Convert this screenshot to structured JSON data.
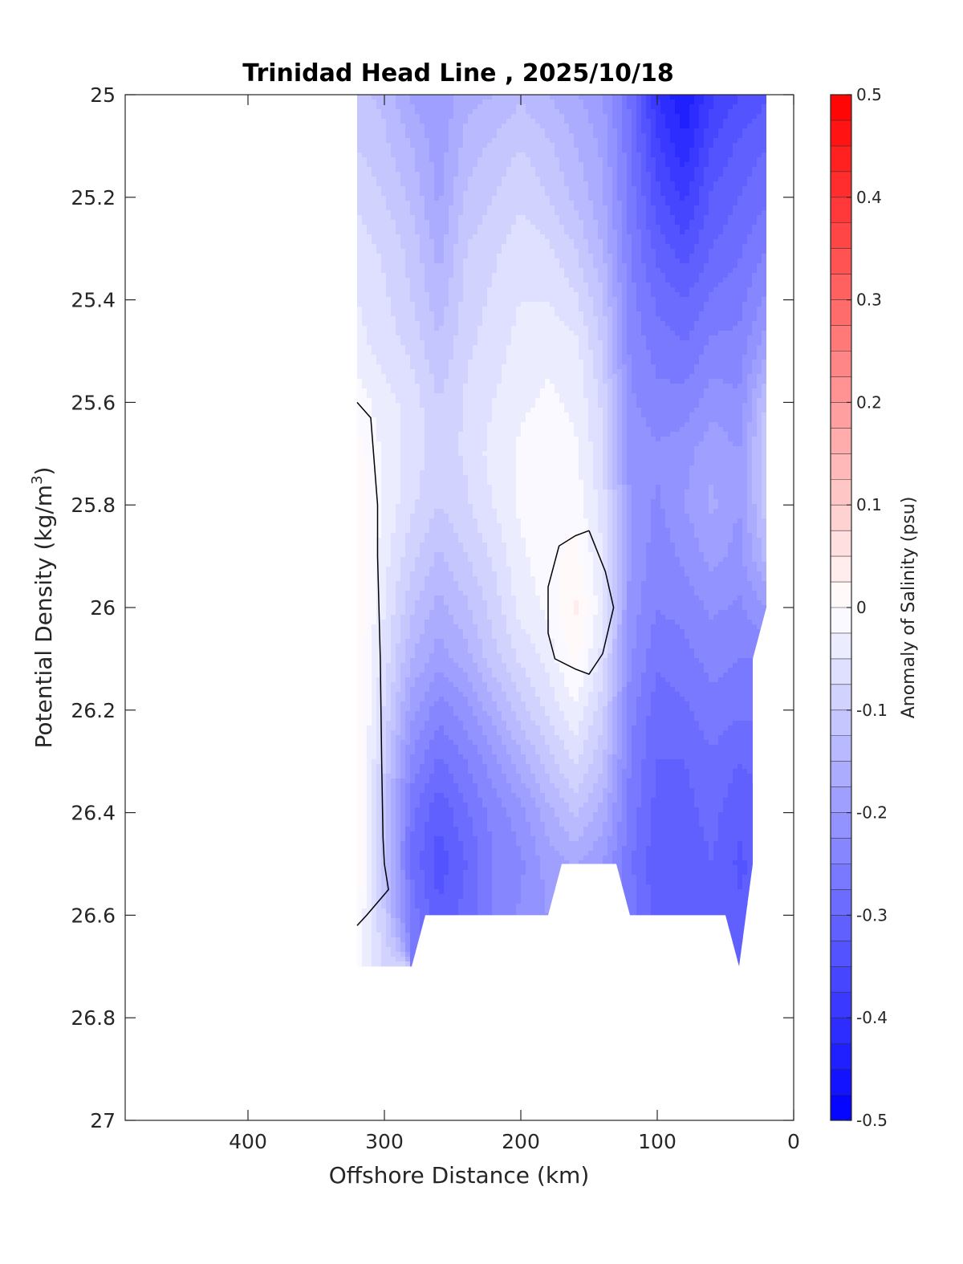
{
  "chart_data": {
    "type": "heatmap",
    "title": "Trinidad Head Line , 2025/10/18",
    "xlabel": "Offshore Distance (km)",
    "ylabel": "Potential Density (kg/m",
    "ylabel_superscript": "3",
    "ylabel_close": ")",
    "colorbar_label": "Anomaly of Salinity (psu)",
    "xlim": [
      490,
      0
    ],
    "x_direction": "reversed",
    "ylim": [
      25,
      27
    ],
    "y_direction": "reversed",
    "x_ticks": [
      400,
      300,
      200,
      100,
      0
    ],
    "y_ticks": [
      25,
      25.2,
      25.4,
      25.6,
      25.8,
      26,
      26.2,
      26.4,
      26.6,
      26.8,
      27
    ],
    "y_tick_labels": [
      "25",
      "25.2",
      "25.4",
      "25.6",
      "25.8",
      "26",
      "26.2",
      "26.4",
      "26.6",
      "26.8",
      "27"
    ],
    "colorbar_ticks": [
      0.5,
      0.4,
      0.3,
      0.2,
      0.1,
      0,
      -0.1,
      -0.2,
      -0.3,
      -0.4,
      -0.5
    ],
    "colorbar_tick_labels": [
      "0.5",
      "0.4",
      "0.3",
      "0.2",
      "0.1",
      "0",
      "-0.1",
      "-0.2",
      "-0.3",
      "-0.4",
      "-0.5"
    ],
    "color_range": [
      -0.5,
      0.5
    ],
    "color_levels": 40,
    "colormap": {
      "low": "#0000ff",
      "mid": "#ffffff",
      "high": "#ff0000"
    },
    "grid": false,
    "contours": [
      {
        "level": 0,
        "points": [
          [
            320,
            25.6
          ],
          [
            310,
            25.63
          ],
          [
            305,
            25.8
          ],
          [
            305,
            25.9
          ],
          [
            304,
            26.0
          ],
          [
            303,
            26.1
          ],
          [
            302,
            26.3
          ],
          [
            301,
            26.45
          ],
          [
            300,
            26.5
          ],
          [
            297,
            26.55
          ],
          [
            313,
            26.6
          ],
          [
            320,
            26.62
          ]
        ]
      },
      {
        "level": 0,
        "points": [
          [
            150,
            25.85
          ],
          [
            160,
            25.86
          ],
          [
            172,
            25.88
          ],
          [
            180,
            25.96
          ],
          [
            180,
            26.05
          ],
          [
            175,
            26.1
          ],
          [
            160,
            26.12
          ],
          [
            150,
            26.13
          ],
          [
            140,
            26.09
          ],
          [
            132,
            26.0
          ],
          [
            138,
            25.93
          ],
          [
            150,
            25.85
          ]
        ]
      }
    ],
    "coverage_x_range": [
      320,
      20
    ],
    "grid_x": [
      320,
      300,
      280,
      260,
      240,
      220,
      200,
      180,
      160,
      140,
      120,
      100,
      80,
      60,
      40,
      20
    ],
    "grid_y": [
      25.0,
      25.1,
      25.2,
      25.3,
      25.4,
      25.5,
      25.6,
      25.7,
      25.8,
      25.9,
      26.0,
      26.1,
      26.2,
      26.3,
      26.4,
      26.5,
      26.6,
      26.7
    ],
    "values": [
      [
        -0.12,
        -0.13,
        -0.18,
        -0.2,
        -0.16,
        -0.15,
        -0.13,
        -0.15,
        -0.17,
        -0.2,
        -0.28,
        -0.4,
        -0.45,
        -0.38,
        -0.35,
        -0.33
      ],
      [
        -0.1,
        -0.12,
        -0.15,
        -0.19,
        -0.14,
        -0.12,
        -0.1,
        -0.12,
        -0.15,
        -0.18,
        -0.27,
        -0.37,
        -0.42,
        -0.35,
        -0.32,
        -0.3
      ],
      [
        -0.08,
        -0.1,
        -0.13,
        -0.18,
        -0.12,
        -0.1,
        -0.08,
        -0.1,
        -0.13,
        -0.17,
        -0.26,
        -0.34,
        -0.38,
        -0.32,
        -0.3,
        -0.28
      ],
      [
        -0.06,
        -0.08,
        -0.11,
        -0.16,
        -0.1,
        -0.08,
        -0.06,
        -0.07,
        -0.1,
        -0.15,
        -0.25,
        -0.31,
        -0.34,
        -0.3,
        -0.28,
        -0.25
      ],
      [
        -0.05,
        -0.07,
        -0.1,
        -0.14,
        -0.09,
        -0.07,
        -0.05,
        -0.05,
        -0.07,
        -0.12,
        -0.24,
        -0.28,
        -0.3,
        -0.27,
        -0.26,
        -0.22
      ],
      [
        -0.04,
        -0.06,
        -0.08,
        -0.12,
        -0.08,
        -0.06,
        -0.04,
        -0.03,
        -0.04,
        -0.1,
        -0.23,
        -0.26,
        -0.27,
        -0.24,
        -0.24,
        -0.18
      ],
      [
        -0.01,
        -0.04,
        -0.06,
        -0.1,
        -0.07,
        -0.05,
        -0.03,
        -0.02,
        -0.03,
        -0.08,
        -0.22,
        -0.24,
        -0.24,
        -0.21,
        -0.22,
        -0.12
      ],
      [
        0.01,
        -0.03,
        -0.06,
        -0.09,
        -0.07,
        -0.04,
        -0.02,
        -0.01,
        -0.02,
        -0.07,
        -0.21,
        -0.22,
        -0.21,
        -0.18,
        -0.2,
        -0.1
      ],
      [
        0.02,
        -0.03,
        -0.07,
        -0.1,
        -0.08,
        -0.05,
        -0.02,
        -0.01,
        -0.01,
        -0.06,
        -0.2,
        -0.23,
        -0.2,
        -0.17,
        -0.2,
        -0.11
      ],
      [
        0.02,
        -0.04,
        -0.09,
        -0.13,
        -0.1,
        -0.07,
        -0.03,
        -0.01,
        0.01,
        -0.05,
        -0.2,
        -0.24,
        -0.22,
        -0.19,
        -0.21,
        -0.14
      ],
      [
        0.02,
        -0.05,
        -0.12,
        -0.16,
        -0.13,
        -0.09,
        -0.04,
        -0.02,
        0.03,
        -0.04,
        -0.21,
        -0.25,
        -0.24,
        -0.22,
        -0.23,
        -0.2
      ],
      [
        0.02,
        -0.06,
        -0.15,
        -0.19,
        -0.16,
        -0.11,
        -0.07,
        -0.04,
        0.01,
        -0.06,
        -0.22,
        -0.27,
        -0.26,
        -0.24,
        -0.25,
        -0.25
      ],
      [
        0.02,
        -0.08,
        -0.19,
        -0.24,
        -0.21,
        -0.16,
        -0.11,
        -0.07,
        -0.03,
        -0.09,
        -0.24,
        -0.29,
        -0.28,
        -0.26,
        -0.27,
        -0.27
      ],
      [
        0.03,
        -0.1,
        -0.23,
        -0.28,
        -0.25,
        -0.21,
        -0.16,
        -0.11,
        -0.07,
        -0.12,
        -0.25,
        -0.3,
        -0.3,
        -0.28,
        -0.3,
        -0.29
      ],
      [
        0.02,
        -0.12,
        -0.27,
        -0.32,
        -0.28,
        -0.24,
        -0.21,
        -0.16,
        -0.12,
        -0.16,
        -0.26,
        -0.31,
        -0.31,
        -0.29,
        -0.32,
        -0.3
      ],
      [
        0.02,
        -0.12,
        -0.28,
        -0.34,
        -0.3,
        -0.25,
        -0.23,
        -0.19,
        -0.17,
        -0.2,
        -0.27,
        -0.32,
        -0.32,
        -0.3,
        -0.33,
        -0.31
      ],
      [
        0.0,
        -0.1,
        -0.26,
        -0.32,
        -0.29,
        -0.25,
        -0.22,
        null,
        null,
        null,
        -0.26,
        -0.31,
        -0.31,
        -0.3,
        -0.32,
        null
      ],
      [
        -0.02,
        -0.08,
        null,
        null,
        null,
        null,
        null,
        null,
        null,
        null,
        null,
        null,
        null,
        null,
        null,
        null
      ]
    ],
    "data_boundary": [
      [
        320,
        25
      ],
      [
        20,
        25
      ],
      [
        20,
        25.1
      ],
      [
        20,
        25.3
      ],
      [
        20,
        26.0
      ],
      [
        30,
        26.1
      ],
      [
        30,
        26.5
      ],
      [
        40,
        26.7
      ],
      [
        50,
        26.6
      ],
      [
        120,
        26.6
      ],
      [
        130,
        26.5
      ],
      [
        170,
        26.5
      ],
      [
        180,
        26.6
      ],
      [
        270,
        26.6
      ],
      [
        280,
        26.7
      ],
      [
        320,
        26.7
      ]
    ]
  }
}
